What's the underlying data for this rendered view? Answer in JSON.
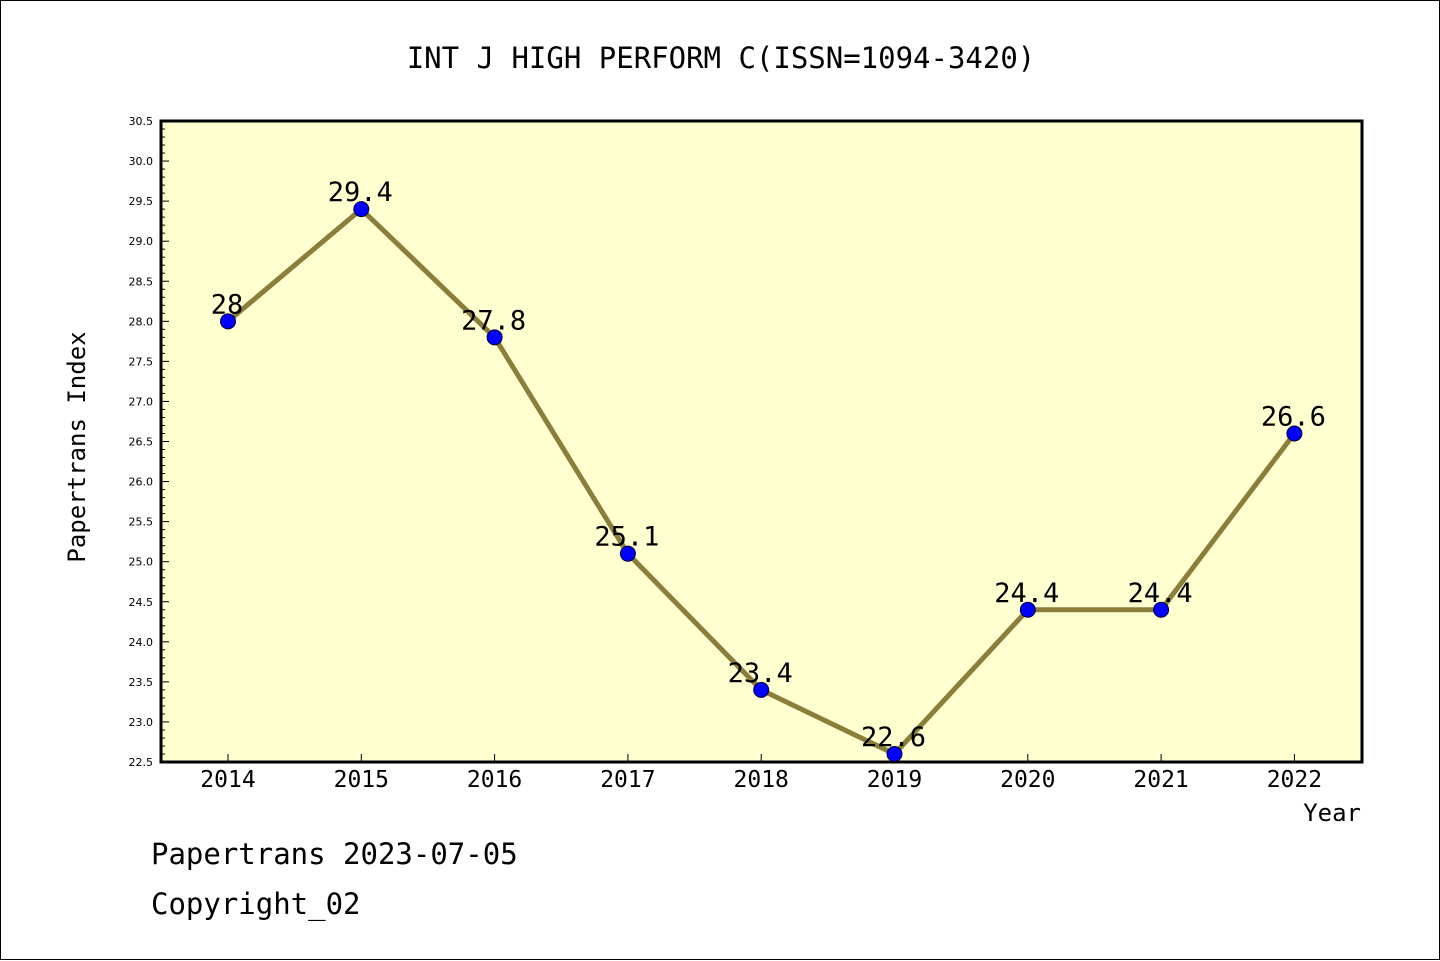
{
  "chart_data": {
    "type": "line",
    "title": "INT J HIGH PERFORM C(ISSN=1094-3420)",
    "xlabel": "Year",
    "ylabel": "Papertrans Index",
    "categories": [
      "2014",
      "2015",
      "2016",
      "2017",
      "2018",
      "2019",
      "2020",
      "2021",
      "2022"
    ],
    "series": [
      {
        "values": [
          28,
          29.4,
          27.8,
          25.1,
          23.4,
          22.6,
          24.4,
          24.4,
          26.6
        ],
        "labels": [
          "28",
          "29.4",
          "27.8",
          "25.1",
          "23.4",
          "22.6",
          "24.4",
          "24.4",
          "26.6"
        ]
      }
    ],
    "ylim": [
      22.5,
      30.5
    ],
    "yticks": [
      "22.5",
      "23.0",
      "23.5",
      "24.0",
      "24.5",
      "25.0",
      "25.5",
      "26.0",
      "26.5",
      "27.0",
      "27.5",
      "28.0",
      "28.5",
      "29.0",
      "29.5",
      "30.0",
      "30.5"
    ],
    "grid": false,
    "colors": {
      "plot_background": "#ffffd0",
      "line": "#8b7d3a",
      "marker": "#0000ff"
    }
  },
  "footer": {
    "line1": "Papertrans 2023-07-05",
    "line2": "Copyright_02"
  }
}
